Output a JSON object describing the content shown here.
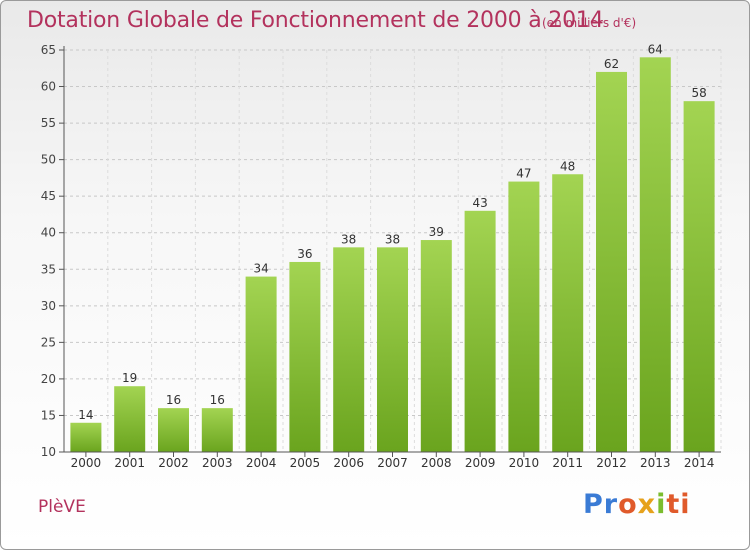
{
  "title": "Dotation Globale de Fonctionnement de 2000 à 2014",
  "unit_note": "(en milliers d'€)",
  "commune": "PlèVE",
  "logo": {
    "part1": "Pr",
    "part2": "o",
    "part3": "x",
    "part4": "i",
    "part5": "ti"
  },
  "colors": {
    "bar": "#7fb830",
    "bar_light": "#9fd04a",
    "title": "#b3325d",
    "grid": "#c8c8c8"
  },
  "chart_data": {
    "type": "bar",
    "title": "Dotation Globale de Fonctionnement de 2000 à 2014",
    "subtitle": "(en milliers d'€)",
    "categories": [
      "2000",
      "2001",
      "2002",
      "2003",
      "2004",
      "2005",
      "2006",
      "2007",
      "2008",
      "2009",
      "2010",
      "2011",
      "2012",
      "2013",
      "2014"
    ],
    "values": [
      14,
      19,
      16,
      16,
      34,
      36,
      38,
      38,
      39,
      43,
      47,
      48,
      62,
      64,
      58
    ],
    "ylim": [
      10,
      65
    ],
    "yticks": [
      10,
      15,
      20,
      25,
      30,
      35,
      40,
      45,
      50,
      55,
      60,
      65
    ],
    "grid": true,
    "data_labels": true
  }
}
